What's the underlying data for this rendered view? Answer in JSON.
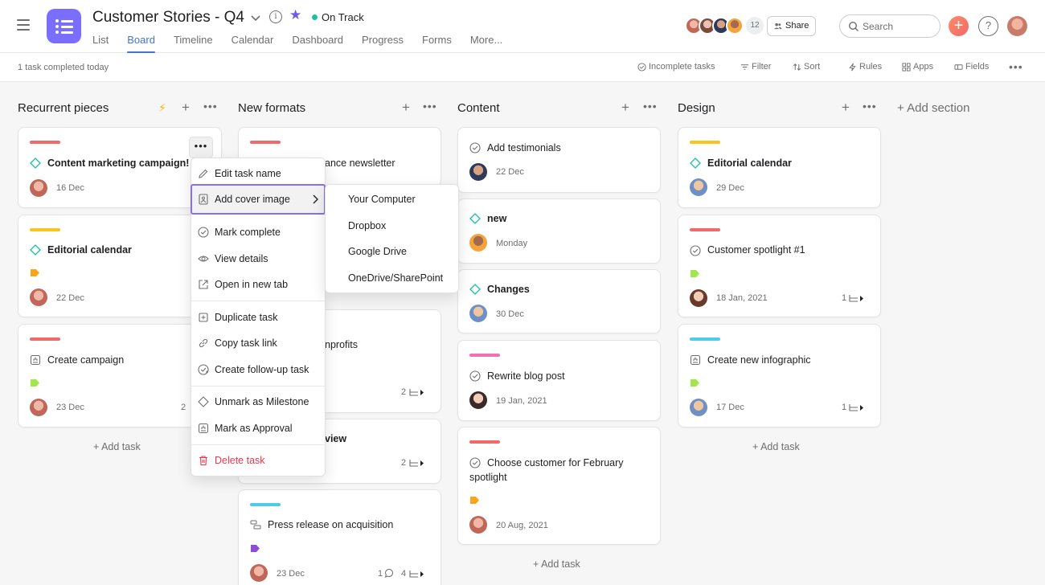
{
  "project": {
    "title": "Customer Stories - Q4",
    "status": "On Track",
    "tabs": [
      "List",
      "Board",
      "Timeline",
      "Calendar",
      "Dashboard",
      "Progress",
      "Forms",
      "More..."
    ],
    "active_tab": "Board"
  },
  "header": {
    "member_count": "12",
    "share_label": "Share",
    "search_placeholder": "Search",
    "help_label": "?"
  },
  "toolbar": {
    "status_text": "1 task completed today",
    "incomplete": "Incomplete tasks",
    "filter": "Filter",
    "sort": "Sort",
    "rules": "Rules",
    "apps": "Apps",
    "fields": "Fields"
  },
  "columns": [
    {
      "title": "Recurrent pieces"
    },
    {
      "title": "New formats"
    },
    {
      "title": "Content"
    },
    {
      "title": "Design"
    }
  ],
  "add_section": "+ Add section",
  "add_task": "+ Add task",
  "cards": {
    "c1": {
      "title": "Content marketing campaign!",
      "date": "16 Dec"
    },
    "c2": {
      "title": "Editorial calendar",
      "date": "22 Dec"
    },
    "c3": {
      "title": "Create campaign",
      "date": "23 Dec",
      "sub": "2"
    },
    "n1": {
      "title_fragment": "ance newsletter"
    },
    "n2": {
      "title_fragment": "nprofits",
      "sub": "2"
    },
    "n3": {
      "title_fragment": "view",
      "sub": "2"
    },
    "n4": {
      "title": "Press release on acquisition",
      "date": "23 Dec",
      "comments": "1",
      "sub": "4"
    },
    "k1": {
      "title": "Add testimonials",
      "date": "22 Dec"
    },
    "k2": {
      "title": "new",
      "date": "Monday"
    },
    "k3": {
      "title": "Changes",
      "date": "30 Dec"
    },
    "k4": {
      "title": "Rewrite blog post",
      "date": "19 Jan, 2021"
    },
    "k5": {
      "title_line1": "Choose customer for February",
      "title_line2": "spotlight",
      "date": "20 Aug, 2021"
    },
    "d1": {
      "title": "Editorial calendar",
      "date": "29 Dec"
    },
    "d2": {
      "title": "Customer spotlight #1",
      "date": "18 Jan, 2021",
      "sub": "1"
    },
    "d3": {
      "title": "Create new infographic",
      "date": "17 Dec",
      "sub": "1"
    }
  },
  "context_menu": {
    "items": [
      "Edit task name",
      "Add cover image",
      "Mark complete",
      "View details",
      "Open in new tab",
      "Duplicate task",
      "Copy task link",
      "Create follow-up task",
      "Unmark as Milestone",
      "Mark as Approval",
      "Delete task"
    ],
    "highlighted": "Add cover image"
  },
  "submenu": {
    "items": [
      "Your Computer",
      "Dropbox",
      "Google Drive",
      "OneDrive/SharePoint"
    ]
  },
  "colors": {
    "accent": "#4573d2",
    "project_icon": "#796eff",
    "red_bar": "#f06a6a",
    "yellow_bar": "#f8c51c",
    "cyan_bar": "#4ecbc4",
    "pink_bar": "#f26fb2",
    "danger": "#e8384f",
    "menu_highlight_border": "#8c6ef0"
  }
}
